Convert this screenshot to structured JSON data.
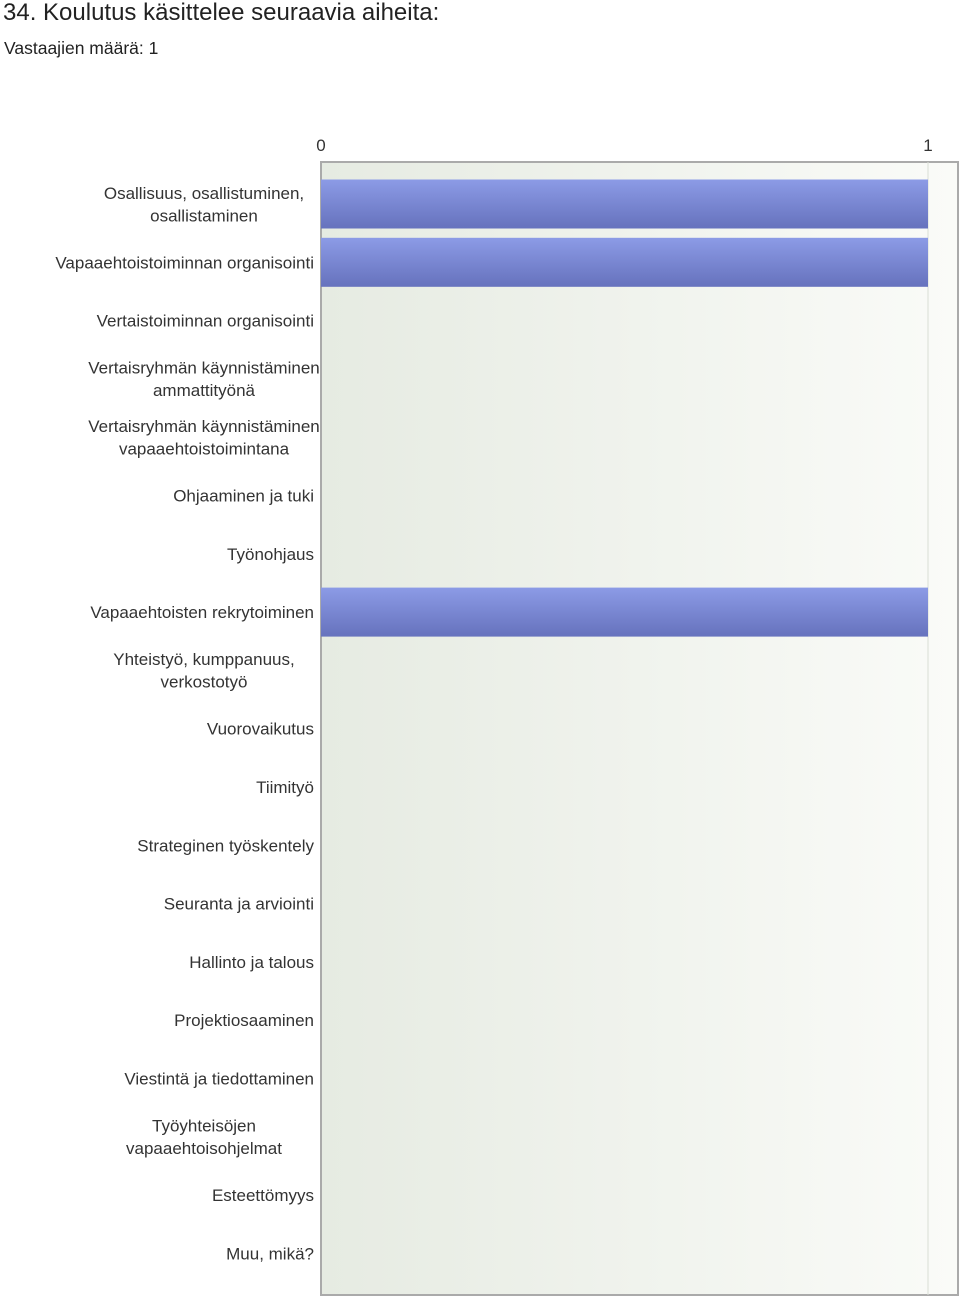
{
  "header": {
    "title": "34. Koulutus käsittelee seuraavia aiheita:",
    "respondents": "Vastaajien määrä: 1"
  },
  "colors": {
    "bar_top": "#8c9be6",
    "bar_bottom": "#6672bd",
    "plot_bg_left": "#e6ebe2",
    "plot_bg_right": "#fafbf8",
    "axis": "#aaaaaa",
    "gridline": "#d9ddd6"
  },
  "chart_data": {
    "type": "bar",
    "orientation": "horizontal",
    "categories": [
      [
        "Osallisuus, osallistuminen,",
        "osallistaminen"
      ],
      [
        "Vapaaehtoistoiminnan organisointi"
      ],
      [
        "Vertaistoiminnan organisointi"
      ],
      [
        "Vertaisryhmän käynnistäminen",
        "ammattityönä"
      ],
      [
        "Vertaisryhmän käynnistäminen",
        "vapaaehtoistoimintana"
      ],
      [
        "Ohjaaminen ja tuki"
      ],
      [
        "Työnohjaus"
      ],
      [
        "Vapaaehtoisten rekrytoiminen"
      ],
      [
        "Yhteistyö, kumppanuus,",
        "verkostotyö"
      ],
      [
        "Vuorovaikutus"
      ],
      [
        "Tiimityö"
      ],
      [
        "Strateginen työskentely"
      ],
      [
        "Seuranta ja arviointi"
      ],
      [
        "Hallinto ja talous"
      ],
      [
        "Projektiosaaminen"
      ],
      [
        "Viestintä ja tiedottaminen"
      ],
      [
        "Työyhteisöjen",
        "vapaaehtoisohjelmat"
      ],
      [
        "Esteettömyys"
      ],
      [
        "Muu, mikä?"
      ]
    ],
    "values": [
      1,
      1,
      0,
      0,
      0,
      0,
      0,
      1,
      0,
      0,
      0,
      0,
      0,
      0,
      0,
      0,
      0,
      0,
      0
    ],
    "xlim": [
      0,
      1
    ],
    "xticks": [
      "0",
      "1"
    ],
    "legend": "none"
  }
}
